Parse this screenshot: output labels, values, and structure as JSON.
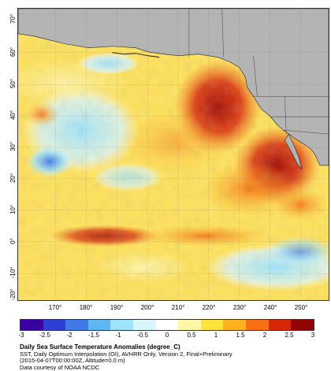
{
  "map": {
    "lat_ticks": [
      "70°",
      "60°",
      "50°",
      "40°",
      "30°",
      "20°",
      "10°",
      "0°",
      "-10°",
      "-20°"
    ],
    "lon_ticks": [
      "170°",
      "180°",
      "190°",
      "200°",
      "210°",
      "220°",
      "230°",
      "240°",
      "250°"
    ],
    "land_color": "#b4b4b4",
    "ocean_base_color": "#ffe25a"
  },
  "colorbar": {
    "ticks": [
      "-3",
      "-2.5",
      "-2",
      "-1.5",
      "-1",
      "-0.5",
      "0",
      "0.5",
      "1",
      "1.5",
      "2",
      "2.5",
      "3"
    ],
    "colors": [
      "#3a00a0",
      "#2d3fd4",
      "#3f7ae6",
      "#5fb6f2",
      "#9ee3fb",
      "#d8f6fd",
      "#ffffff",
      "#fff6a8",
      "#ffe23c",
      "#ffb11e",
      "#f87012",
      "#d82608",
      "#8f0602"
    ]
  },
  "caption": {
    "title": "Daily Sea Surface Temperature Anomalies (degree_C)",
    "line1": "SST, Daily Optimum Interpolation (OI), AVHRR Only, Version 2, Final+Preliminary",
    "line2": "(2015-04-07T00:00:00Z, Altitude=0.0 m)",
    "line3": "Data courtesy of NOAA NCDC"
  }
}
